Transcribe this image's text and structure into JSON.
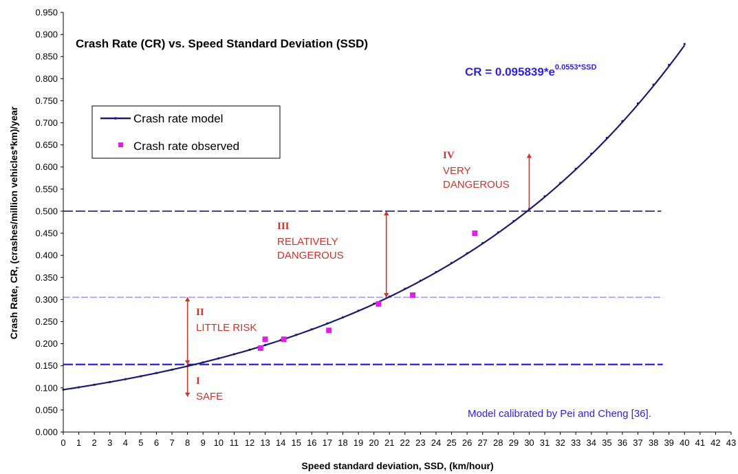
{
  "chart_data": {
    "type": "line",
    "title": "Crash Rate (CR) vs. Speed Standard Deviation (SSD)",
    "xlabel": "Speed standard deviation, SSD, (km/hour)",
    "ylabel": "Crash Rate, CR, (crashes/million vehicles*km)/year",
    "xlim": [
      0,
      43
    ],
    "ylim": [
      0,
      0.95
    ],
    "x_ticks": [
      "0",
      "1",
      "2",
      "3",
      "4",
      "5",
      "6",
      "7",
      "8",
      "9",
      "10",
      "11",
      "12",
      "13",
      "14",
      "15",
      "16",
      "17",
      "18",
      "19",
      "20",
      "21",
      "22",
      "23",
      "24",
      "25",
      "26",
      "27",
      "28",
      "29",
      "30",
      "31",
      "32",
      "33",
      "34",
      "35",
      "36",
      "37",
      "38",
      "39",
      "40",
      "41",
      "42",
      "43"
    ],
    "y_ticks": [
      "0.000",
      "0.050",
      "0.100",
      "0.150",
      "0.200",
      "0.250",
      "0.300",
      "0.350",
      "0.400",
      "0.450",
      "0.500",
      "0.550",
      "0.600",
      "0.650",
      "0.700",
      "0.750",
      "0.800",
      "0.850",
      "0.900",
      "0.950"
    ],
    "grid": false,
    "legend_position": "top-left",
    "equation": {
      "main": "CR = 0.095839*e",
      "exponent": "0.0553*SSD"
    },
    "model": {
      "a": 0.095839,
      "b": 0.0553,
      "x_min": 0,
      "x_max": 40
    },
    "series": [
      {
        "name": "Crash rate model",
        "color": "#1a1a6e",
        "x": [
          0,
          1,
          2,
          3,
          4,
          5,
          6,
          7,
          8,
          9,
          10,
          11,
          12,
          13,
          14,
          15,
          16,
          17,
          18,
          19,
          20,
          21,
          22,
          23,
          24,
          25,
          26,
          27,
          28,
          29,
          30,
          31,
          32,
          33,
          34,
          35,
          36,
          37,
          38,
          39,
          40
        ],
        "y": [
          0.0958,
          0.1013,
          0.1071,
          0.1132,
          0.1196,
          0.1264,
          0.1336,
          0.1412,
          0.1493,
          0.1578,
          0.1668,
          0.1763,
          0.1863,
          0.1969,
          0.2081,
          0.22,
          0.2325,
          0.2458,
          0.2597,
          0.2745,
          0.2902,
          0.3067,
          0.3242,
          0.3426,
          0.3621,
          0.3827,
          0.4045,
          0.4275,
          0.4519,
          0.4776,
          0.5048,
          0.5336,
          0.5639,
          0.596,
          0.63,
          0.6659,
          0.7038,
          0.7439,
          0.7863,
          0.831,
          0.8784
        ]
      },
      {
        "name": "Crash rate observed",
        "color": "#e020e8",
        "x": [
          12.7,
          13.0,
          14.2,
          17.1,
          20.3,
          22.5,
          26.5
        ],
        "y": [
          0.19,
          0.21,
          0.21,
          0.23,
          0.29,
          0.31,
          0.45
        ]
      }
    ],
    "thresholds": [
      {
        "y": 0.153,
        "color": "#2b22d8",
        "width": 2.2,
        "dash": "14 4"
      },
      {
        "y": 0.305,
        "color": "#8a86f0",
        "width": 1.2,
        "dash": "10 3"
      },
      {
        "y": 0.5,
        "color": "#1a1a7a",
        "width": 1.6,
        "dash": "14 4"
      }
    ],
    "arrows": [
      {
        "x": 8,
        "y1": 0.153,
        "y2": 0.305
      },
      {
        "x": 8,
        "y1": 0.153,
        "y2": 0.08
      },
      {
        "x": 20.8,
        "y1": 0.305,
        "y2": 0.5
      },
      {
        "x": 30,
        "y1": 0.5,
        "y2": 0.63
      }
    ],
    "zones": [
      {
        "number": "I",
        "label": "SAFE"
      },
      {
        "number": "II",
        "label": "LITTLE RISK"
      },
      {
        "number": "III",
        "label": "RELATIVELY DANGEROUS"
      },
      {
        "number": "IV",
        "label": "VERY DANGEROUS"
      }
    ],
    "zone_label_lines": {
      "III": [
        "RELATIVELY",
        "DANGEROUS"
      ],
      "IV": [
        "VERY",
        "DANGEROUS"
      ]
    },
    "note": "Model calibrated by Pei and Cheng [36].",
    "colors": {
      "axis": "#000000",
      "zone_text": "#c8352a",
      "equation_text": "#2b22e8"
    }
  }
}
